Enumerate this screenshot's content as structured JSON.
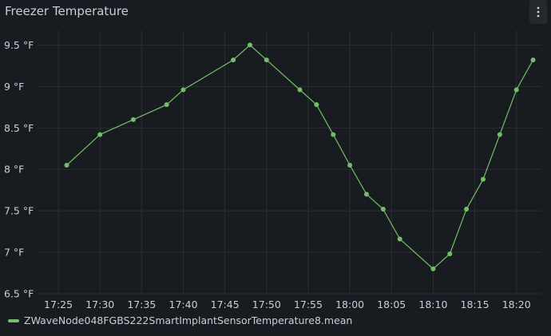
{
  "panel": {
    "title": "Freezer Temperature",
    "menu_icon": "vertical-ellipsis-icon"
  },
  "colors": {
    "background": "#181b1f",
    "grid": "#2b2e33",
    "series": "#73bf69",
    "text": "#ccccdc"
  },
  "chart_data": {
    "type": "line",
    "title": "Freezer Temperature",
    "xlabel": "",
    "ylabel": "",
    "y_unit": "°F",
    "ylim": [
      6.5,
      9.6
    ],
    "y_ticks": [
      6.5,
      7,
      7.5,
      8,
      8.5,
      9,
      9.5
    ],
    "y_tick_labels": [
      "6.5 °F",
      "7 °F",
      "7.5 °F",
      "8 °F",
      "8.5 °F",
      "9 °F",
      "9.5 °F"
    ],
    "xlim": [
      "17:22:30",
      "18:23:00"
    ],
    "x_ticks": [
      "17:25",
      "17:30",
      "17:35",
      "17:40",
      "17:45",
      "17:50",
      "17:55",
      "18:00",
      "18:05",
      "18:10",
      "18:15",
      "18:20"
    ],
    "grid": true,
    "legend_position": "bottom-left",
    "series": [
      {
        "name": "ZWaveNode048FGBS222SmartImplantSensorTemperature8.mean",
        "x": [
          "17:26",
          "17:30",
          "17:34",
          "17:38",
          "17:40",
          "17:46",
          "17:48",
          "17:50",
          "17:54",
          "17:56",
          "17:58",
          "18:00",
          "18:02",
          "18:04",
          "18:06",
          "18:10",
          "18:12",
          "18:14",
          "18:16",
          "18:18",
          "18:20",
          "18:22"
        ],
        "y": [
          8.05,
          8.42,
          8.6,
          8.78,
          8.96,
          9.32,
          9.5,
          9.32,
          8.96,
          8.78,
          8.42,
          8.05,
          7.7,
          7.52,
          7.16,
          6.8,
          6.98,
          7.52,
          7.88,
          8.42,
          8.96,
          9.32
        ]
      }
    ]
  }
}
